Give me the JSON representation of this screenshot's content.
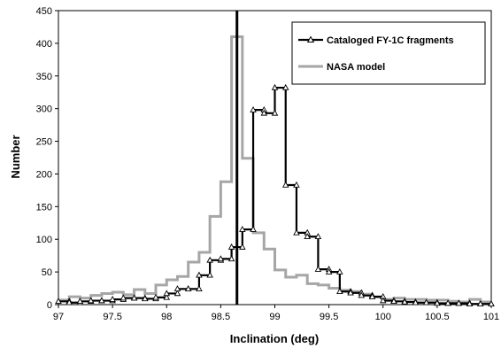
{
  "chart_data": {
    "type": "line",
    "title": "",
    "xlabel": "Inclination (deg)",
    "ylabel": "Number",
    "xlim": [
      97,
      101
    ],
    "ylim": [
      0,
      450
    ],
    "x_ticks": [
      {
        "value": 97,
        "label": "97"
      },
      {
        "value": 97.5,
        "label": "97.5"
      },
      {
        "value": 98,
        "label": "98"
      },
      {
        "value": 98.5,
        "label": "98.5"
      },
      {
        "value": 99,
        "label": "99"
      },
      {
        "value": 99.5,
        "label": "99.5"
      },
      {
        "value": 100,
        "label": "100"
      },
      {
        "value": 100.5,
        "label": "100.5"
      },
      {
        "value": 101,
        "label": "101"
      }
    ],
    "y_ticks": [
      {
        "value": 0,
        "label": "0"
      },
      {
        "value": 50,
        "label": "50"
      },
      {
        "value": 100,
        "label": "100"
      },
      {
        "value": 150,
        "label": "150"
      },
      {
        "value": 200,
        "label": "200"
      },
      {
        "value": 250,
        "label": "250"
      },
      {
        "value": 300,
        "label": "300"
      },
      {
        "value": 350,
        "label": "350"
      },
      {
        "value": 400,
        "label": "400"
      },
      {
        "value": 450,
        "label": "450"
      }
    ],
    "grid": false,
    "legend": "top-right",
    "reference_line": {
      "x": 98.65,
      "color": "#000000"
    },
    "series": [
      {
        "name": "Cataloged FY-1C fragments",
        "color": "#000000",
        "marker": "triangle",
        "step": "post",
        "x": [
          97.0,
          97.1,
          97.2,
          97.3,
          97.4,
          97.5,
          97.6,
          97.7,
          97.8,
          97.9,
          98.0,
          98.1,
          98.2,
          98.3,
          98.4,
          98.5,
          98.6,
          98.7,
          98.8,
          98.9,
          99.0,
          99.1,
          99.2,
          99.3,
          99.4,
          99.5,
          99.6,
          99.7,
          99.8,
          99.9,
          100.0,
          100.1,
          100.2,
          100.3,
          100.4,
          100.5,
          100.6,
          100.7,
          100.8,
          100.9,
          101.0
        ],
        "y": [
          5,
          3,
          5,
          6,
          6,
          8,
          10,
          10,
          9,
          11,
          17,
          24,
          24,
          45,
          68,
          70,
          88,
          115,
          298,
          293,
          332,
          183,
          110,
          104,
          54,
          50,
          20,
          18,
          14,
          12,
          6,
          5,
          4,
          3,
          3,
          2,
          2,
          2,
          1,
          1,
          1
        ]
      },
      {
        "name": "NASA model",
        "color": "#a6a6a6",
        "marker": "none",
        "step": "post",
        "x": [
          97.0,
          97.1,
          97.2,
          97.3,
          97.4,
          97.5,
          97.6,
          97.7,
          97.8,
          97.9,
          98.0,
          98.1,
          98.2,
          98.3,
          98.4,
          98.5,
          98.6,
          98.7,
          98.8,
          98.9,
          99.0,
          99.1,
          99.2,
          99.3,
          99.4,
          99.5,
          99.6,
          99.7,
          99.8,
          99.9,
          100.0,
          100.1,
          100.2,
          100.3,
          100.4,
          100.5,
          100.6,
          100.7,
          100.8,
          100.9,
          101.0
        ],
        "y": [
          7,
          12,
          10,
          14,
          17,
          19,
          15,
          23,
          17,
          30,
          38,
          43,
          65,
          80,
          135,
          188,
          410,
          224,
          110,
          85,
          53,
          42,
          45,
          32,
          30,
          25,
          22,
          20,
          16,
          12,
          8,
          10,
          8,
          8,
          7,
          7,
          5,
          4,
          8,
          4,
          4
        ]
      }
    ]
  }
}
